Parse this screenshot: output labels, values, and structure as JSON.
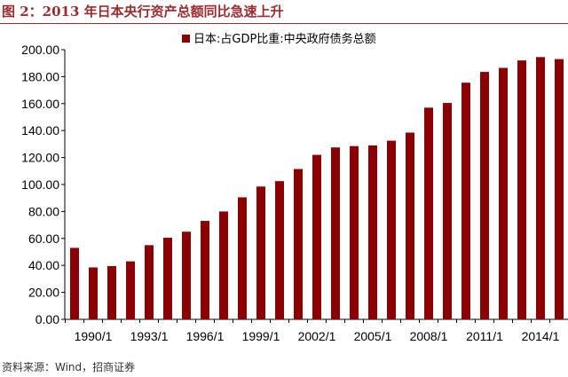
{
  "title": "图 2：2013 年日本央行资产总额同比急速上升",
  "source": "资料来源：Wind，招商证券",
  "colors": {
    "bar": "#8b0000",
    "title": "#9b2b2f"
  },
  "chart_data": {
    "type": "bar",
    "title": "图 2：2013 年日本央行资产总额同比急速上升",
    "legend": [
      "日本:占GDP比重:中央政府债务总额"
    ],
    "legend_position": "top",
    "categories": [
      "1990/1",
      "1991/1",
      "1992/1",
      "1993/1",
      "1994/1",
      "1995/1",
      "1996/1",
      "1997/1",
      "1998/1",
      "1999/1",
      "2000/1",
      "2001/1",
      "2002/1",
      "2003/1",
      "2004/1",
      "2005/1",
      "2006/1",
      "2007/1",
      "2008/1",
      "2009/1",
      "2010/1",
      "2011/1",
      "2012/1",
      "2013/1",
      "2014/1",
      "2015/1",
      "2016/1"
    ],
    "values": [
      53,
      38.5,
      39.5,
      43,
      55,
      60.5,
      65,
      73,
      80,
      90.5,
      98.5,
      102.5,
      111.5,
      122,
      127.5,
      128.5,
      129,
      132.5,
      138.5,
      157,
      160.5,
      175.5,
      183.5,
      186.5,
      192,
      194.5,
      193
    ],
    "xtick_labels": [
      "1990/1",
      "1993/1",
      "1996/1",
      "1999/1",
      "2002/1",
      "2005/1",
      "2008/1",
      "2011/1",
      "2014/1"
    ],
    "ytick_labels": [
      "0.00",
      "20.00",
      "40.00",
      "60.00",
      "80.00",
      "100.00",
      "120.00",
      "140.00",
      "160.00",
      "180.00",
      "200.00"
    ],
    "ylim": [
      0,
      200
    ],
    "grid": false,
    "xlabel": "",
    "ylabel": ""
  }
}
